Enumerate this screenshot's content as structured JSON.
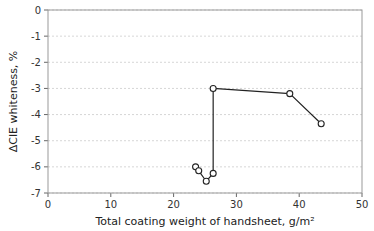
{
  "chart_data": {
    "type": "line",
    "x_label": "Total coating weight of handsheet, g/m²",
    "y_label": "ΔCIE whiteness, %",
    "x": [
      23.5,
      24.0,
      25.2,
      26.3,
      26.3,
      38.5,
      43.5
    ],
    "values": [
      -6.0,
      -6.15,
      -6.55,
      -6.25,
      -3.0,
      -3.2,
      -4.35
    ],
    "color": "#222222",
    "marker": "circle",
    "xlim": [
      0,
      50
    ],
    "ylim": [
      -7,
      0
    ],
    "xticks": [
      0,
      10,
      20,
      30,
      40,
      50
    ],
    "yticks": [
      0,
      -1,
      -2,
      -3,
      -4,
      -5,
      -6,
      -7
    ],
    "grid": "y"
  }
}
